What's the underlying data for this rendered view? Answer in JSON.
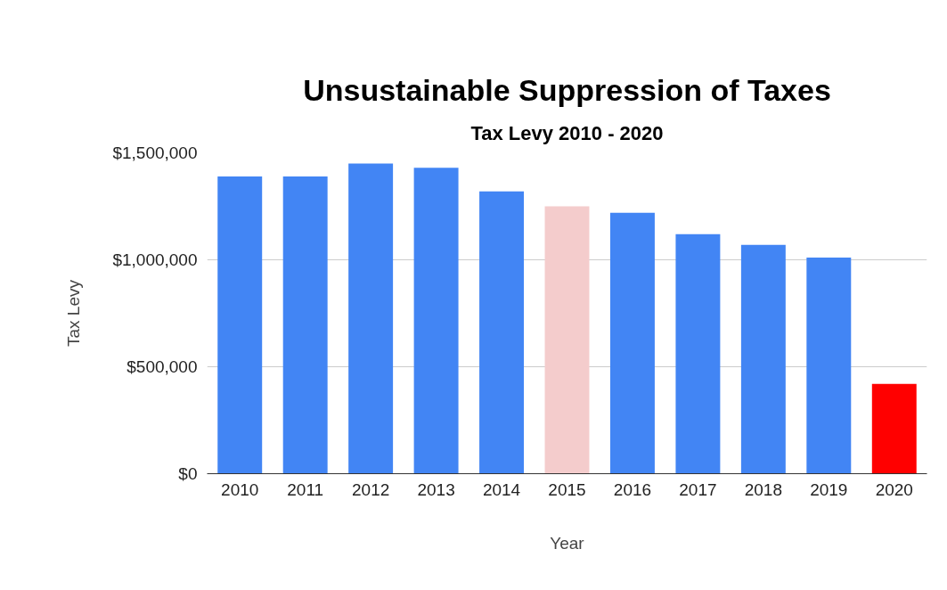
{
  "chart_data": {
    "type": "bar",
    "title": "Unsustainable Suppression of Taxes",
    "subtitle": "Tax Levy 2010 - 2020",
    "xlabel": "Year",
    "ylabel": "Tax Levy",
    "categories": [
      "2010",
      "2011",
      "2012",
      "2013",
      "2014",
      "2015",
      "2016",
      "2017",
      "2018",
      "2019",
      "2020"
    ],
    "values": [
      1390000,
      1390000,
      1450000,
      1430000,
      1320000,
      1250000,
      1220000,
      1120000,
      1070000,
      1010000,
      420000
    ],
    "colors": [
      "#4285f4",
      "#4285f4",
      "#4285f4",
      "#4285f4",
      "#4285f4",
      "#f4cccc",
      "#4285f4",
      "#4285f4",
      "#4285f4",
      "#4285f4",
      "#ff0000"
    ],
    "ylim": [
      0,
      1500000
    ],
    "yticks": [
      {
        "value": 0,
        "label": "$0"
      },
      {
        "value": 500000,
        "label": "$500,000"
      },
      {
        "value": 1000000,
        "label": "$1,000,000"
      },
      {
        "value": 1500000,
        "label": "$1,500,000"
      }
    ],
    "grid": "y"
  }
}
